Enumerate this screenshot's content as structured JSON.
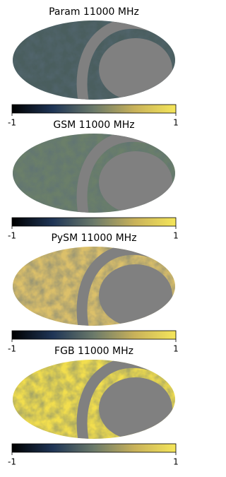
{
  "chart_data": [
    {
      "type": "map",
      "title": "Param 11000 MHz",
      "color": "#4a5e5e",
      "mask_color": "#808080",
      "colormap": [
        "#000000",
        "#1f3556",
        "#6b7a6a",
        "#c9b25a",
        "#f5e65a"
      ],
      "cticks": [
        -1,
        1
      ]
    },
    {
      "type": "map",
      "title": "GSM 11000 MHz",
      "color": "#6b7f6a",
      "mask_color": "#808080",
      "colormap": [
        "#000000",
        "#1f3556",
        "#6b7a6a",
        "#c9b25a",
        "#f5e65a"
      ],
      "cticks": [
        -1,
        1
      ]
    },
    {
      "type": "map",
      "title": "PySM 11000 MHz",
      "color": "#dcc06a",
      "mask_color": "#808080",
      "colormap": [
        "#000000",
        "#1f3556",
        "#6b7a6a",
        "#c9b25a",
        "#f5e65a"
      ],
      "cticks": [
        -1,
        1
      ]
    },
    {
      "type": "map",
      "title": "FGB 11000 MHz",
      "color": "#f2de4e",
      "mask_color": "#808080",
      "colormap": [
        "#000000",
        "#1f3556",
        "#6b7a6a",
        "#c9b25a",
        "#f5e65a"
      ],
      "cticks": [
        -1,
        1
      ]
    }
  ]
}
